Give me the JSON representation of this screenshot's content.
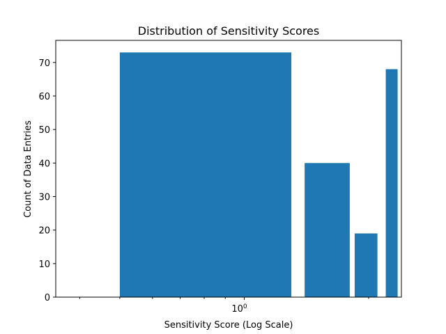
{
  "chart_data": {
    "type": "bar",
    "title": "Distribution of Sensitivity Scores",
    "xlabel": "Sensitivity Score (Log Scale)",
    "ylabel": "Count of Data Entries",
    "x_scale": "log",
    "xlim": [
      0.35,
      2.4
    ],
    "ylim": [
      0,
      76.6
    ],
    "y_ticks": [
      0,
      10,
      20,
      30,
      40,
      50,
      60,
      70
    ],
    "x_major_ticks": [
      1
    ],
    "x_major_tick_labels": [
      "10",
      "0"
    ],
    "x_minor_ticks": [
      0.4,
      0.5,
      0.6,
      0.7,
      0.8,
      0.9,
      2
    ],
    "bars": [
      {
        "x_start": 0.5,
        "x_end": 1.3,
        "value": 73
      },
      {
        "x_start": 1.4,
        "x_end": 1.8,
        "value": 40
      },
      {
        "x_start": 1.85,
        "x_end": 2.1,
        "value": 19
      },
      {
        "x_start": 2.2,
        "x_end": 2.35,
        "value": 68
      }
    ],
    "bar_color": "#1f77b4",
    "grid": false,
    "legend": false
  }
}
